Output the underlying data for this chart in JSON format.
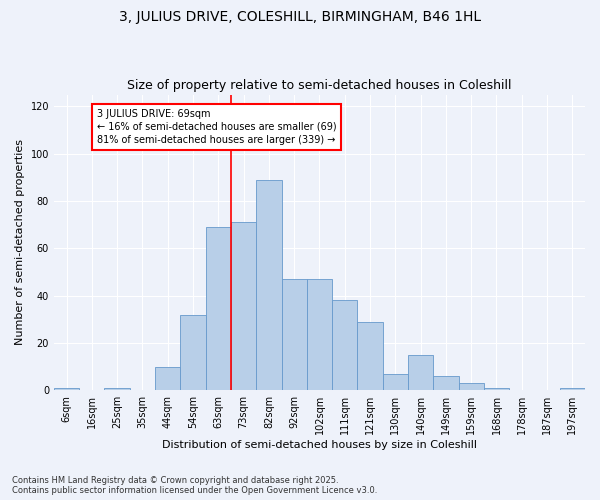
{
  "title1": "3, JULIUS DRIVE, COLESHILL, BIRMINGHAM, B46 1HL",
  "title2": "Size of property relative to semi-detached houses in Coleshill",
  "xlabel": "Distribution of semi-detached houses by size in Coleshill",
  "ylabel": "Number of semi-detached properties",
  "categories": [
    "6sqm",
    "16sqm",
    "25sqm",
    "35sqm",
    "44sqm",
    "54sqm",
    "63sqm",
    "73sqm",
    "82sqm",
    "92sqm",
    "102sqm",
    "111sqm",
    "121sqm",
    "130sqm",
    "140sqm",
    "149sqm",
    "159sqm",
    "168sqm",
    "178sqm",
    "187sqm",
    "197sqm"
  ],
  "values": [
    1,
    0,
    1,
    0,
    10,
    32,
    69,
    71,
    89,
    47,
    47,
    38,
    29,
    7,
    15,
    6,
    3,
    1,
    0,
    0,
    1
  ],
  "bar_color": "#b8cfe8",
  "bar_edge_color": "#6699cc",
  "property_line_index": 6,
  "annotation_title": "3 JULIUS DRIVE: 69sqm",
  "annotation_line1": "← 16% of semi-detached houses are smaller (69)",
  "annotation_line2": "81% of semi-detached houses are larger (339) →",
  "ylim": [
    0,
    125
  ],
  "yticks": [
    0,
    20,
    40,
    60,
    80,
    100,
    120
  ],
  "footer1": "Contains HM Land Registry data © Crown copyright and database right 2025.",
  "footer2": "Contains public sector information licensed under the Open Government Licence v3.0.",
  "bg_color": "#eef2fa",
  "grid_color": "#ffffff",
  "title_fontsize": 10,
  "subtitle_fontsize": 9,
  "axis_label_fontsize": 8,
  "tick_fontsize": 7,
  "footer_fontsize": 6
}
